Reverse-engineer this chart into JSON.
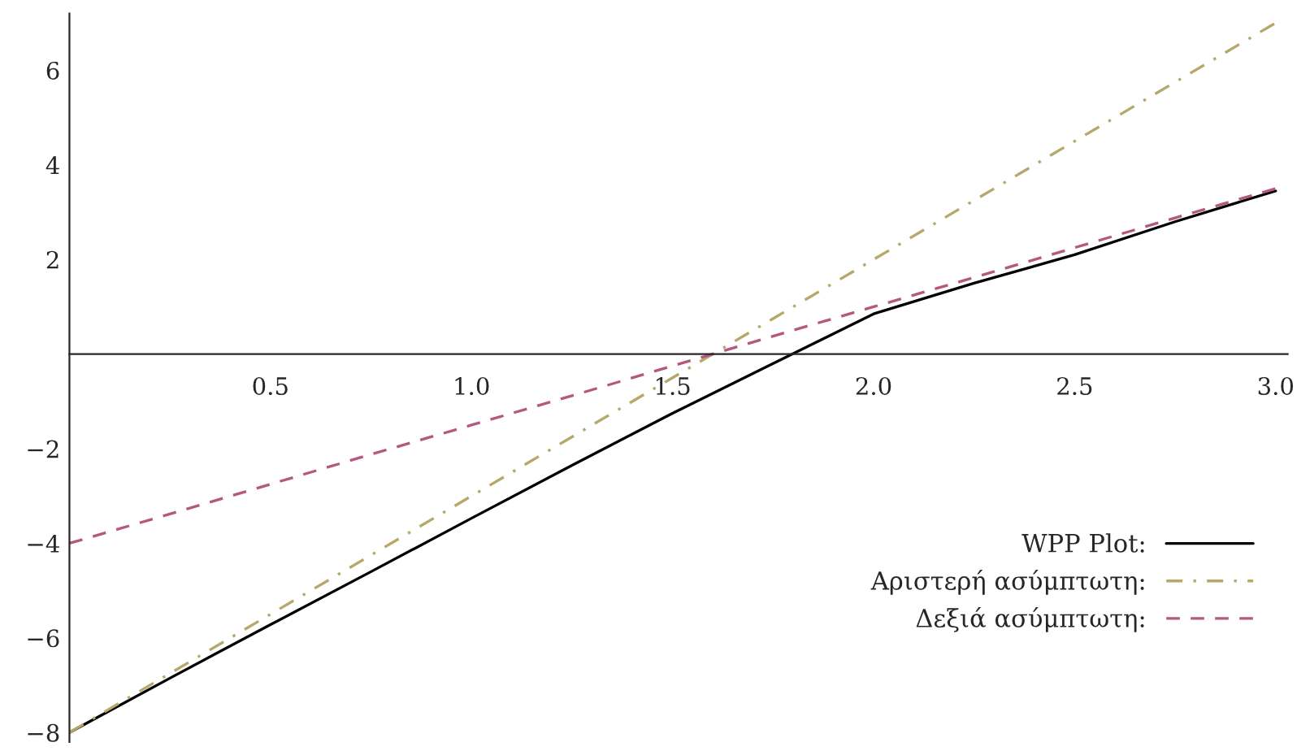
{
  "chart_data": {
    "type": "line",
    "x": [
      0,
      0.25,
      0.5,
      0.75,
      1.0,
      1.25,
      1.5,
      1.75,
      2.0,
      2.25,
      2.5,
      2.75,
      3.0
    ],
    "series": [
      {
        "name": "WPP Plot:",
        "color": "#000000",
        "line_style": "solid",
        "values": [
          -8,
          -6.85,
          -5.72,
          -4.6,
          -3.47,
          -2.35,
          -1.25,
          -0.2,
          0.85,
          1.5,
          2.1,
          2.8,
          3.45
        ]
      },
      {
        "name": "Αριστερή ασύμπτωτη:",
        "color": "#b5a86a",
        "line_style": "dashdot",
        "values": [
          -8,
          -6.75,
          -5.5,
          -4.25,
          -3,
          -1.75,
          -0.5,
          0.75,
          2,
          3.25,
          4.5,
          5.75,
          7
        ]
      },
      {
        "name": "Δεξιά ασύμπτωτη:",
        "color": "#b5577f",
        "line_style": "dashed",
        "values": [
          -4,
          -3.38,
          -2.75,
          -2.12,
          -1.5,
          -0.88,
          -0.25,
          0.38,
          1,
          1.62,
          2.25,
          2.88,
          3.5
        ]
      }
    ],
    "xlim": [
      0,
      3.03
    ],
    "ylim": [
      -8.2,
      7.2
    ],
    "xticks": [
      0.5,
      {
        "value": 1,
        "label": "1.0"
      },
      1.5,
      {
        "value": 2,
        "label": "2.0"
      },
      2.5,
      {
        "value": 3,
        "label": "3.0"
      }
    ],
    "yticks": [
      {
        "value": -8,
        "label": "−8"
      },
      {
        "value": -6,
        "label": "−6"
      },
      {
        "value": -4,
        "label": "−4"
      },
      {
        "value": -2,
        "label": "−2"
      },
      2,
      4,
      6
    ],
    "grid": false,
    "legend": "bottom right",
    "marker": "none"
  }
}
